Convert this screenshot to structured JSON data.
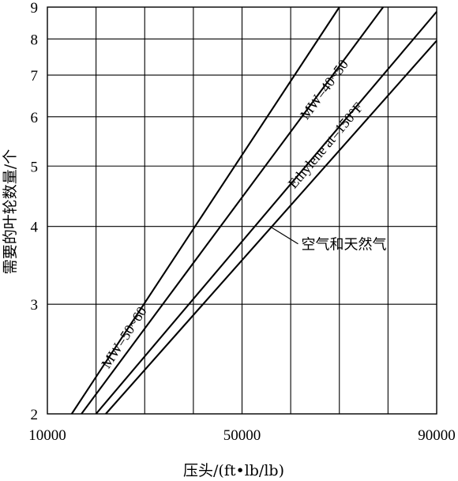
{
  "chart_data": {
    "type": "line",
    "title": "",
    "xlabel": "压头/(ft•lb/lb)",
    "ylabel": "需要的叶轮数量/个",
    "x_ticks": [
      10000,
      50000,
      90000
    ],
    "y_ticks": [
      2,
      3,
      4,
      5,
      6,
      7,
      8,
      9
    ],
    "xlim": [
      10000,
      90000
    ],
    "ylim": [
      2,
      9
    ],
    "y_scale": "log",
    "grid": true,
    "series": [
      {
        "name": "MW=50~60",
        "x": [
          15000,
          70000
        ],
        "y": [
          2.0,
          9.0
        ]
      },
      {
        "name": "MW=40~50",
        "x": [
          17000,
          79000
        ],
        "y": [
          2.0,
          9.0
        ]
      },
      {
        "name": "Ethylene at=150°F",
        "x": [
          20000,
          90000
        ],
        "y": [
          2.0,
          8.85
        ]
      },
      {
        "name": "空气和天然气",
        "x": [
          22000,
          90000
        ],
        "y": [
          2.0,
          7.95
        ]
      }
    ],
    "annotations": [
      {
        "text": "MW=50~60",
        "series": 0
      },
      {
        "text": "MW=40~50",
        "series": 1
      },
      {
        "text": "Ethylene at=150°F",
        "series": 2
      },
      {
        "text": "空气和天然气",
        "series": 3
      }
    ]
  }
}
